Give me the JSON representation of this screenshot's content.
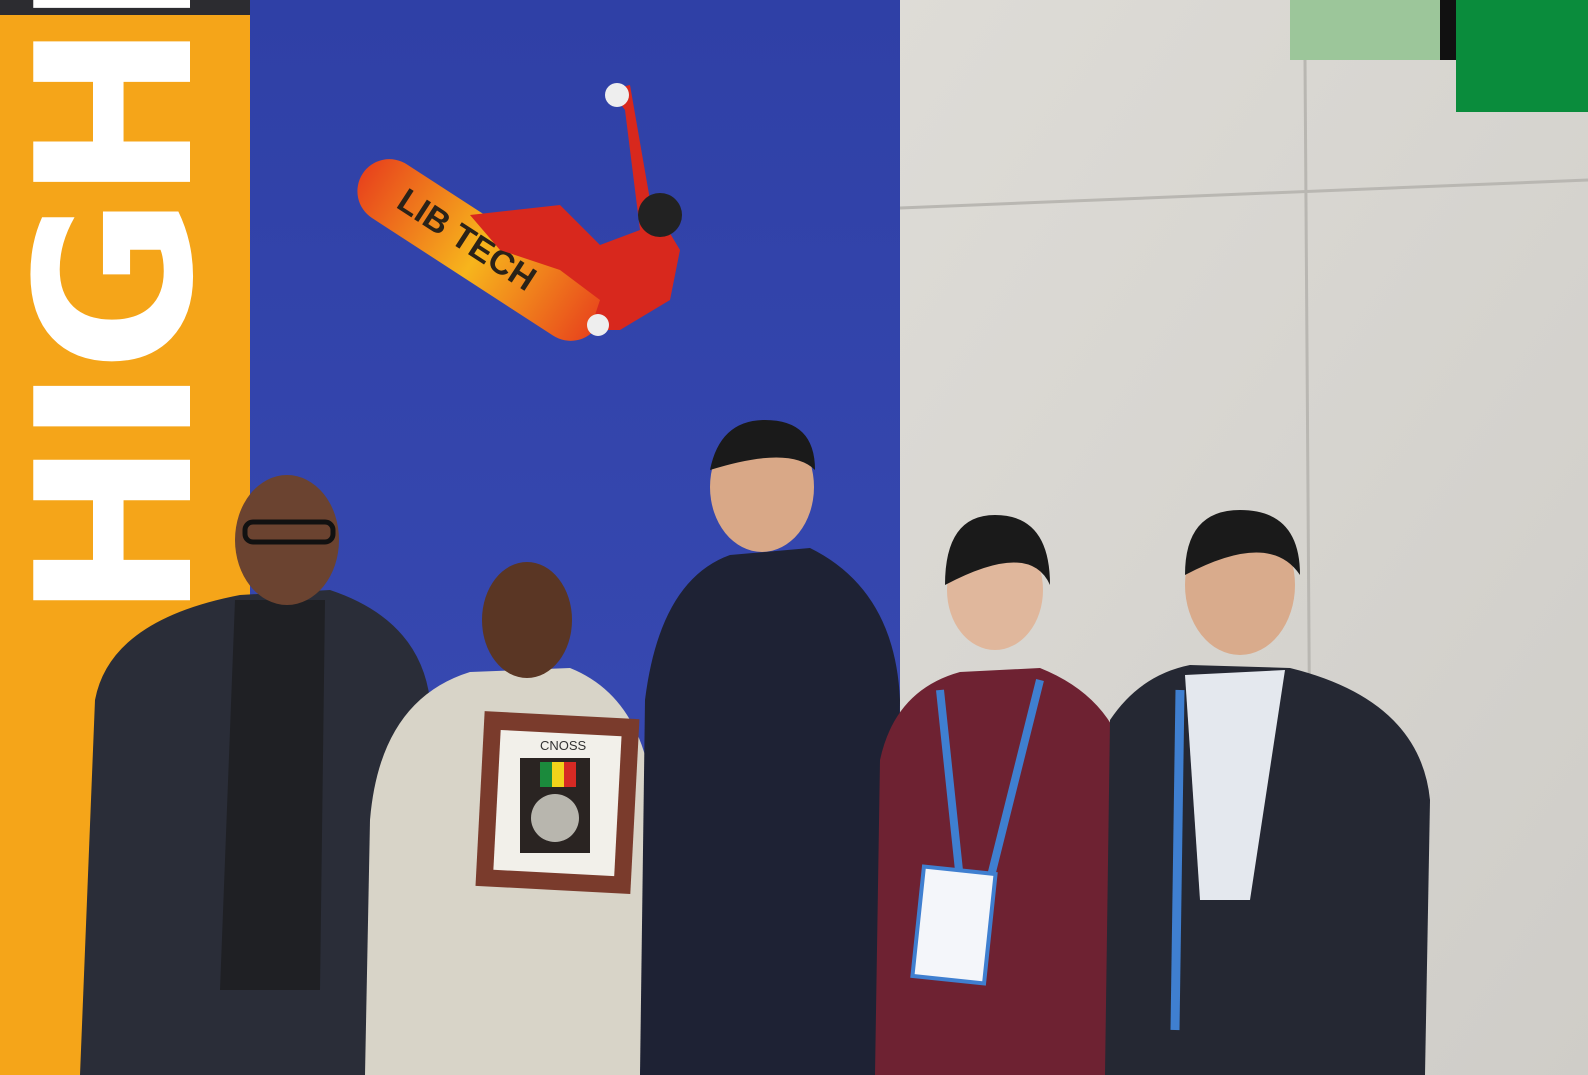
{
  "banner": {
    "text": "HIGHER"
  },
  "snowboard": {
    "brand": "LIB TECH"
  },
  "plaque": {
    "label": "CNOSS"
  }
}
